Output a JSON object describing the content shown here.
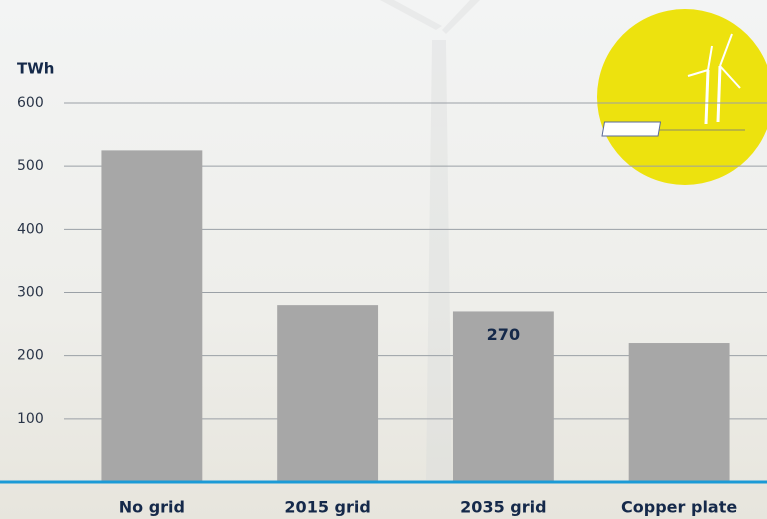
{
  "chart_data": {
    "type": "bar",
    "y_label": "TWh",
    "categories": [
      "No grid",
      "2015 grid",
      "2035 grid",
      "Copper plate"
    ],
    "values": [
      525,
      280,
      270,
      220
    ],
    "value_labels": [
      null,
      null,
      "270",
      null
    ],
    "color": "#a7a7a7",
    "ylim": [
      0,
      600
    ],
    "yticks": [
      100,
      200,
      300,
      400,
      500,
      600
    ],
    "grid": true
  }
}
